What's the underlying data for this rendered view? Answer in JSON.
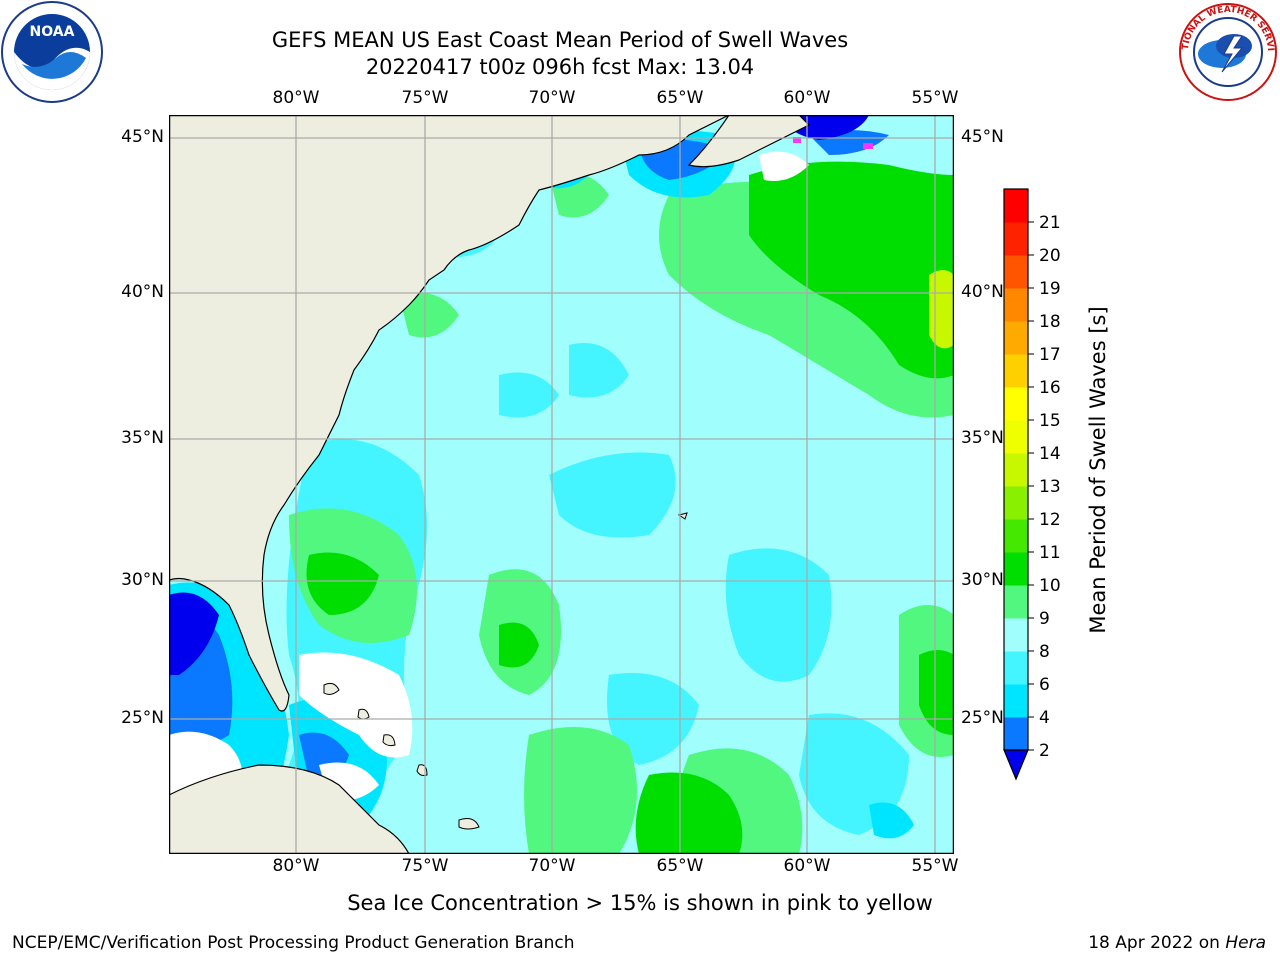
{
  "header": {
    "title_line1": "GEFS MEAN US East Coast Mean Period of Swell Waves",
    "title_line2": "20220417 t00z 096h fcst   Max: 13.04"
  },
  "logos": {
    "noaa": {
      "text": "NOAA",
      "icon": "noaa-logo-icon"
    },
    "nws": {
      "text": "NATIONAL WEATHER SERVICE",
      "icon": "nws-logo-icon"
    }
  },
  "map": {
    "lon_labels": [
      "80°W",
      "75°W",
      "70°W",
      "65°W",
      "60°W",
      "55°W"
    ],
    "lat_labels": [
      "45°N",
      "40°N",
      "35°N",
      "30°N",
      "25°N"
    ],
    "colors": {
      "land": "#eeeee0",
      "grid": "#aaaaaa",
      "coast": "#000000",
      "missing": "#ffffff"
    }
  },
  "colorbar": {
    "label": "Mean Period of Swell Waves [s]",
    "ticks": [
      "2",
      "4",
      "6",
      "8",
      "9",
      "10",
      "11",
      "12",
      "13",
      "14",
      "15",
      "16",
      "17",
      "18",
      "19",
      "20",
      "21"
    ],
    "under_color": "#0000ee",
    "colors": [
      "#0a78ff",
      "#00e5ff",
      "#44f5ff",
      "#a0fffd",
      "#52f780",
      "#00dd00",
      "#44e800",
      "#88f000",
      "#c8f800",
      "#f0ff00",
      "#ffff00",
      "#ffd000",
      "#ffaa00",
      "#ff8800",
      "#ff5500",
      "#ff2200",
      "#ff0000"
    ]
  },
  "notes": {
    "sea_ice": "Sea Ice Concentration > 15% is shown in pink to yellow"
  },
  "footer": {
    "left": "NCEP/EMC/Verification Post Processing Product Generation Branch",
    "date": "18 Apr 2022 on ",
    "host": "Hera"
  }
}
